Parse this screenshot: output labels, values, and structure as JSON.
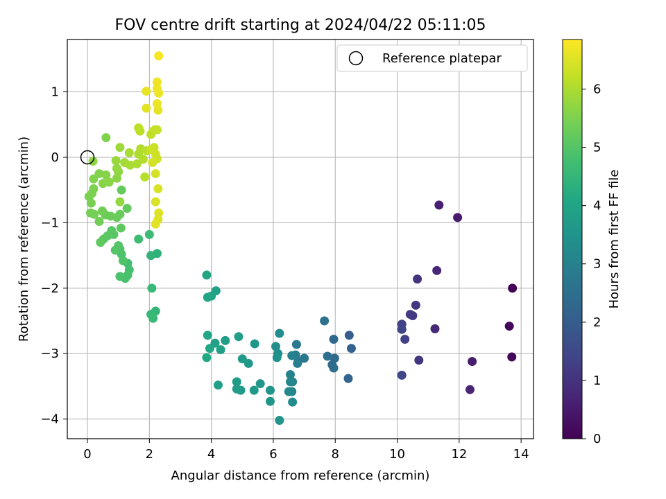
{
  "chart_data": {
    "type": "scatter",
    "title": "FOV centre drift starting at 2024/04/22 05:11:05",
    "xlabel": "Angular distance from reference (arcmin)",
    "ylabel": "Rotation from reference (arcmin)",
    "xlim": [
      -0.65,
      14.4
    ],
    "ylim": [
      -4.3,
      1.8
    ],
    "xticks": [
      0,
      2,
      4,
      6,
      8,
      10,
      12,
      14
    ],
    "yticks": [
      1,
      0,
      -1,
      -2,
      -3,
      -4
    ],
    "ytick_labels": [
      "1",
      "0",
      "−1",
      "−2",
      "−3",
      "−4"
    ],
    "grid": true,
    "legend": {
      "placement": "top-right",
      "entries": [
        "Reference platepar"
      ]
    },
    "reference_point": {
      "x": 0,
      "y": 0,
      "label": "Reference platepar"
    },
    "colorbar": {
      "label": "Hours from first FF file",
      "colormap": "viridis",
      "range": [
        0,
        6.85
      ],
      "ticks": [
        0,
        1,
        2,
        3,
        4,
        5,
        6
      ]
    },
    "points": [
      {
        "x": 13.72,
        "y": -2.0,
        "c": 0.05
      },
      {
        "x": 13.62,
        "y": -2.58,
        "c": 0.1
      },
      {
        "x": 13.7,
        "y": -3.05,
        "c": 0.15
      },
      {
        "x": 11.95,
        "y": -0.92,
        "c": 0.5
      },
      {
        "x": 11.35,
        "y": -0.73,
        "c": 0.6
      },
      {
        "x": 12.42,
        "y": -3.12,
        "c": 0.55
      },
      {
        "x": 12.35,
        "y": -3.55,
        "c": 0.7
      },
      {
        "x": 11.28,
        "y": -1.73,
        "c": 0.75
      },
      {
        "x": 11.22,
        "y": -2.62,
        "c": 0.8
      },
      {
        "x": 10.65,
        "y": -1.86,
        "c": 1.0
      },
      {
        "x": 10.6,
        "y": -2.26,
        "c": 1.1
      },
      {
        "x": 10.5,
        "y": -2.42,
        "c": 1.15
      },
      {
        "x": 10.42,
        "y": -2.4,
        "c": 1.2
      },
      {
        "x": 10.7,
        "y": -3.1,
        "c": 1.05
      },
      {
        "x": 10.25,
        "y": -2.78,
        "c": 1.3
      },
      {
        "x": 10.15,
        "y": -2.55,
        "c": 1.35
      },
      {
        "x": 10.15,
        "y": -2.63,
        "c": 1.4
      },
      {
        "x": 10.15,
        "y": -3.33,
        "c": 1.45
      },
      {
        "x": 8.45,
        "y": -2.72,
        "c": 2.0
      },
      {
        "x": 8.52,
        "y": -2.92,
        "c": 2.1
      },
      {
        "x": 8.42,
        "y": -3.38,
        "c": 2.2
      },
      {
        "x": 7.95,
        "y": -2.78,
        "c": 2.3
      },
      {
        "x": 7.98,
        "y": -3.07,
        "c": 2.35
      },
      {
        "x": 7.9,
        "y": -3.17,
        "c": 2.4
      },
      {
        "x": 7.95,
        "y": -3.22,
        "c": 2.45
      },
      {
        "x": 7.75,
        "y": -3.04,
        "c": 2.5
      },
      {
        "x": 7.65,
        "y": -2.5,
        "c": 2.55
      },
      {
        "x": 7.0,
        "y": -3.07,
        "c": 2.7
      },
      {
        "x": 6.8,
        "y": -3.12,
        "c": 2.75
      },
      {
        "x": 6.75,
        "y": -2.86,
        "c": 2.8
      },
      {
        "x": 6.72,
        "y": -3.02,
        "c": 2.85
      },
      {
        "x": 6.78,
        "y": -3.15,
        "c": 2.9
      },
      {
        "x": 6.6,
        "y": -3.03,
        "c": 2.95
      },
      {
        "x": 6.62,
        "y": -3.43,
        "c": 3.0
      },
      {
        "x": 6.55,
        "y": -3.32,
        "c": 3.05
      },
      {
        "x": 6.6,
        "y": -3.58,
        "c": 3.1
      },
      {
        "x": 6.55,
        "y": -3.43,
        "c": 3.15
      },
      {
        "x": 6.5,
        "y": -3.58,
        "c": 3.2
      },
      {
        "x": 6.62,
        "y": -3.74,
        "c": 3.25
      },
      {
        "x": 6.2,
        "y": -2.69,
        "c": 3.3
      },
      {
        "x": 6.08,
        "y": -2.89,
        "c": 3.35
      },
      {
        "x": 6.15,
        "y": -3.0,
        "c": 3.4
      },
      {
        "x": 6.12,
        "y": -3.06,
        "c": 3.45
      },
      {
        "x": 6.2,
        "y": -4.02,
        "c": 3.5
      },
      {
        "x": 5.9,
        "y": -3.56,
        "c": 3.5
      },
      {
        "x": 5.9,
        "y": -3.73,
        "c": 3.55
      },
      {
        "x": 5.58,
        "y": -3.46,
        "c": 3.6
      },
      {
        "x": 5.4,
        "y": -2.85,
        "c": 3.6
      },
      {
        "x": 5.38,
        "y": -3.56,
        "c": 3.65
      },
      {
        "x": 5.2,
        "y": -3.15,
        "c": 3.65
      },
      {
        "x": 5.0,
        "y": -3.08,
        "c": 3.7
      },
      {
        "x": 4.95,
        "y": -3.56,
        "c": 3.7
      },
      {
        "x": 4.82,
        "y": -3.43,
        "c": 3.75
      },
      {
        "x": 4.82,
        "y": -3.54,
        "c": 3.75
      },
      {
        "x": 4.88,
        "y": -2.74,
        "c": 3.8
      },
      {
        "x": 4.45,
        "y": -2.8,
        "c": 3.8
      },
      {
        "x": 4.3,
        "y": -2.94,
        "c": 3.85
      },
      {
        "x": 4.22,
        "y": -3.48,
        "c": 3.85
      },
      {
        "x": 4.12,
        "y": -2.84,
        "c": 3.9
      },
      {
        "x": 4.15,
        "y": -2.04,
        "c": 3.9
      },
      {
        "x": 4.0,
        "y": -2.12,
        "c": 3.95
      },
      {
        "x": 3.88,
        "y": -2.14,
        "c": 4.0
      },
      {
        "x": 3.85,
        "y": -1.8,
        "c": 4.0
      },
      {
        "x": 3.95,
        "y": -2.92,
        "c": 4.05
      },
      {
        "x": 3.88,
        "y": -2.72,
        "c": 4.05
      },
      {
        "x": 3.85,
        "y": -3.06,
        "c": 4.1
      },
      {
        "x": 2.25,
        "y": -1.47,
        "c": 4.4
      },
      {
        "x": 2.05,
        "y": -1.5,
        "c": 4.45
      },
      {
        "x": 2.2,
        "y": -2.35,
        "c": 4.5
      },
      {
        "x": 2.05,
        "y": -2.4,
        "c": 4.55
      },
      {
        "x": 2.12,
        "y": -2.46,
        "c": 4.6
      },
      {
        "x": 2.08,
        "y": -2.0,
        "c": 4.6
      },
      {
        "x": 2.0,
        "y": -1.18,
        "c": 4.65
      },
      {
        "x": 1.65,
        "y": -1.25,
        "c": 4.7
      },
      {
        "x": 1.3,
        "y": -1.62,
        "c": 4.75
      },
      {
        "x": 1.35,
        "y": -1.72,
        "c": 4.8
      },
      {
        "x": 1.3,
        "y": -1.8,
        "c": 4.85
      },
      {
        "x": 1.22,
        "y": -1.85,
        "c": 4.85
      },
      {
        "x": 1.05,
        "y": -1.82,
        "c": 4.9
      },
      {
        "x": 1.1,
        "y": -1.48,
        "c": 4.9
      },
      {
        "x": 1.15,
        "y": -1.58,
        "c": 4.95
      },
      {
        "x": 1.05,
        "y": -1.4,
        "c": 4.95
      },
      {
        "x": 1.0,
        "y": -1.35,
        "c": 5.0
      },
      {
        "x": 0.9,
        "y": -1.42,
        "c": 5.0
      },
      {
        "x": 0.85,
        "y": -1.18,
        "c": 5.05
      },
      {
        "x": 0.78,
        "y": -1.12,
        "c": 5.05
      },
      {
        "x": 0.65,
        "y": -1.2,
        "c": 5.1
      },
      {
        "x": 0.52,
        "y": -1.25,
        "c": 5.1
      },
      {
        "x": 0.42,
        "y": -1.3,
        "c": 5.15
      },
      {
        "x": 1.08,
        "y": -1.08,
        "c": 5.15
      },
      {
        "x": 1.28,
        "y": -0.78,
        "c": 5.2
      },
      {
        "x": 1.1,
        "y": -0.5,
        "c": 5.2
      },
      {
        "x": 1.05,
        "y": -0.87,
        "c": 5.25
      },
      {
        "x": 0.95,
        "y": -0.92,
        "c": 5.25
      },
      {
        "x": 0.75,
        "y": -0.9,
        "c": 5.3
      },
      {
        "x": 0.58,
        "y": -0.88,
        "c": 5.3
      },
      {
        "x": 0.48,
        "y": -0.82,
        "c": 5.35
      },
      {
        "x": 0.38,
        "y": -0.98,
        "c": 5.35
      },
      {
        "x": 0.22,
        "y": -0.87,
        "c": 5.4
      },
      {
        "x": 0.1,
        "y": -0.85,
        "c": 5.4
      },
      {
        "x": 0.12,
        "y": -0.7,
        "c": 5.45
      },
      {
        "x": 0.05,
        "y": -0.6,
        "c": 5.45
      },
      {
        "x": 0.2,
        "y": -0.48,
        "c": 5.5
      },
      {
        "x": 0.15,
        "y": -0.55,
        "c": 5.5
      },
      {
        "x": 0.2,
        "y": -0.33,
        "c": 5.55
      },
      {
        "x": 0.38,
        "y": -0.25,
        "c": 5.55
      },
      {
        "x": 0.5,
        "y": -0.4,
        "c": 5.6
      },
      {
        "x": 0.6,
        "y": -0.27,
        "c": 5.6
      },
      {
        "x": 0.7,
        "y": -0.38,
        "c": 5.65
      },
      {
        "x": 0.6,
        "y": 0.3,
        "c": 5.55
      },
      {
        "x": 0.95,
        "y": -0.32,
        "c": 5.65
      },
      {
        "x": 1.0,
        "y": -0.22,
        "c": 5.7
      },
      {
        "x": 0.95,
        "y": -0.17,
        "c": 5.75
      },
      {
        "x": 1.05,
        "y": -0.68,
        "c": 5.75
      },
      {
        "x": 0.18,
        "y": -0.06,
        "c": 5.7
      },
      {
        "x": 0.92,
        "y": -0.05,
        "c": 5.8
      },
      {
        "x": 1.05,
        "y": 0.15,
        "c": 5.85
      },
      {
        "x": 1.2,
        "y": -0.08,
        "c": 5.9
      },
      {
        "x": 1.38,
        "y": -0.12,
        "c": 5.95
      },
      {
        "x": 1.35,
        "y": 0.07,
        "c": 5.95
      },
      {
        "x": 1.6,
        "y": -0.1,
        "c": 6.0
      },
      {
        "x": 1.65,
        "y": 0.05,
        "c": 6.0
      },
      {
        "x": 1.72,
        "y": 0.13,
        "c": 6.05
      },
      {
        "x": 1.8,
        "y": -0.03,
        "c": 6.05
      },
      {
        "x": 1.92,
        "y": 0.1,
        "c": 6.1
      },
      {
        "x": 1.85,
        "y": -0.3,
        "c": 6.1
      },
      {
        "x": 1.65,
        "y": 0.45,
        "c": 6.15
      },
      {
        "x": 1.7,
        "y": 0.4,
        "c": 6.15
      },
      {
        "x": 2.05,
        "y": 0.35,
        "c": 6.2
      },
      {
        "x": 2.12,
        "y": 0.4,
        "c": 6.2
      },
      {
        "x": 2.18,
        "y": 0.42,
        "c": 6.25
      },
      {
        "x": 2.25,
        "y": 0.42,
        "c": 6.25
      },
      {
        "x": 2.05,
        "y": 0.12,
        "c": 6.3
      },
      {
        "x": 2.15,
        "y": 0.15,
        "c": 6.3
      },
      {
        "x": 2.2,
        "y": 0.05,
        "c": 6.35
      },
      {
        "x": 2.25,
        "y": -0.02,
        "c": 6.35
      },
      {
        "x": 2.1,
        "y": -0.08,
        "c": 6.4
      },
      {
        "x": 2.2,
        "y": -0.25,
        "c": 6.4
      },
      {
        "x": 2.28,
        "y": -0.48,
        "c": 6.45
      },
      {
        "x": 2.2,
        "y": -0.68,
        "c": 6.45
      },
      {
        "x": 2.3,
        "y": -0.85,
        "c": 6.5
      },
      {
        "x": 2.28,
        "y": -0.95,
        "c": 6.5
      },
      {
        "x": 2.2,
        "y": -1.02,
        "c": 6.55
      },
      {
        "x": 1.9,
        "y": 0.75,
        "c": 6.55
      },
      {
        "x": 1.9,
        "y": 1.01,
        "c": 6.6
      },
      {
        "x": 2.28,
        "y": 0.72,
        "c": 6.6
      },
      {
        "x": 2.25,
        "y": 0.82,
        "c": 6.65
      },
      {
        "x": 2.3,
        "y": 0.98,
        "c": 6.65
      },
      {
        "x": 2.25,
        "y": 1.05,
        "c": 6.7
      },
      {
        "x": 2.25,
        "y": 1.15,
        "c": 6.7
      },
      {
        "x": 2.3,
        "y": 1.55,
        "c": 6.8
      }
    ]
  }
}
